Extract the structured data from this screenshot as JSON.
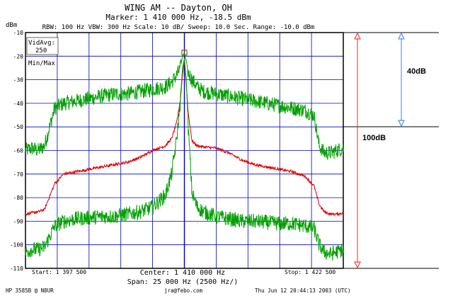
{
  "header": {
    "title": "WING AM -- Dayton, OH",
    "marker": "Marker: 1 410 000 Hz, -18.5 dBm",
    "settings": "RBW: 100 Hz  VBW: 300 Hz  Scale: 10 dB/  Sweep: 10.0 Sec.  Range: -10.0 dBm"
  },
  "footer": {
    "start": "Start: 1 397 500",
    "stop": "Stop: 1 422 500",
    "center": "Center: 1 410 000 Hz",
    "span": "Span: 25 000 Hz (2500 Hz/)",
    "instrument": "HP 3585B @ N8UR",
    "email": "jra@febo.com",
    "timestamp": "Thu Jun 12 20:44:13 2003 (UTC)"
  },
  "legend": {
    "vidavg": "VidAvg:",
    "vidavg_value": "250",
    "minmax": "Min/Max"
  },
  "colors": {
    "max_trace": "#00a000",
    "avg_trace": "#e00000",
    "min_trace": "#00a000",
    "grid": "#0000c0",
    "marker": "#806000",
    "dim40": "#3080ff",
    "dim100": "#ff2020"
  },
  "chart_data": {
    "type": "line",
    "title": "WING AM -- Dayton, OH",
    "ylabel": "dBm",
    "ylim": [
      -110,
      -10
    ],
    "xlim": [
      1397500,
      1422500
    ],
    "grid": true,
    "y_ticks": [
      "-10",
      "-20",
      "-30",
      "-40",
      "-50",
      "-60",
      "-70",
      "-80",
      "-90",
      "-100",
      "-110"
    ],
    "series": [
      {
        "name": "Max",
        "color": "#00a000",
        "x": [
          1397500,
          1398000,
          1398500,
          1399000,
          1399800,
          1400500,
          1401500,
          1402500,
          1403500,
          1404500,
          1405500,
          1406500,
          1407500,
          1408500,
          1409000,
          1409400,
          1409700,
          1409850,
          1410000,
          1410150,
          1410300,
          1410600,
          1411000,
          1411500,
          1412500,
          1413500,
          1414500,
          1415500,
          1416500,
          1417500,
          1418500,
          1419500,
          1420200,
          1420600,
          1421000,
          1421500,
          1422000,
          1422500
        ],
        "y": [
          -60,
          -59,
          -60,
          -58,
          -42,
          -40,
          -39,
          -38,
          -37,
          -36,
          -36,
          -35,
          -34,
          -33,
          -31,
          -28,
          -25,
          -20,
          -18.5,
          -22,
          -27,
          -30,
          -33,
          -35,
          -36,
          -37,
          -38,
          -39,
          -40,
          -41,
          -42,
          -43,
          -45,
          -58,
          -61,
          -61,
          -60,
          -59
        ]
      },
      {
        "name": "Average",
        "color": "#e00000",
        "x": [
          1397500,
          1398000,
          1398500,
          1399000,
          1399800,
          1400500,
          1401500,
          1402500,
          1403500,
          1404500,
          1405500,
          1406500,
          1407500,
          1408500,
          1409000,
          1409400,
          1409700,
          1409850,
          1410000,
          1410150,
          1410300,
          1410600,
          1411000,
          1411500,
          1412500,
          1413500,
          1414500,
          1415500,
          1416500,
          1417500,
          1418500,
          1419500,
          1420200,
          1420600,
          1421000,
          1421500,
          1422000,
          1422500
        ],
        "y": [
          -87,
          -86.5,
          -86,
          -85,
          -74,
          -70,
          -69,
          -68,
          -67,
          -66,
          -65,
          -63,
          -60,
          -58,
          -55,
          -48,
          -38,
          -28,
          -22,
          -32,
          -44,
          -56,
          -58,
          -58.5,
          -59,
          -61,
          -64,
          -66,
          -67,
          -68,
          -69,
          -71,
          -75,
          -83,
          -86,
          -87,
          -87,
          -86.5
        ]
      },
      {
        "name": "Min",
        "color": "#00a000",
        "x": [
          1397500,
          1398000,
          1398500,
          1399000,
          1399800,
          1400500,
          1401500,
          1402500,
          1403500,
          1404500,
          1405500,
          1406500,
          1407500,
          1408500,
          1409000,
          1409400,
          1409700,
          1409850,
          1410000,
          1410150,
          1410300,
          1410600,
          1411000,
          1411500,
          1412500,
          1413500,
          1414500,
          1415500,
          1416500,
          1417500,
          1418500,
          1419500,
          1420200,
          1420600,
          1421000,
          1421500,
          1422000,
          1422500
        ],
        "y": [
          -103,
          -102,
          -102,
          -101,
          -92,
          -90,
          -89,
          -88.5,
          -88,
          -88,
          -87,
          -86,
          -84,
          -79,
          -70,
          -55,
          -38,
          -25,
          -21,
          -30,
          -50,
          -78,
          -84,
          -86,
          -88,
          -89,
          -90,
          -90,
          -90.5,
          -91,
          -91,
          -92,
          -93,
          -100,
          -103,
          -104,
          -103,
          -102
        ]
      }
    ],
    "marker": {
      "x": 1410000,
      "y": -18.5
    },
    "annotations": [
      "40dB",
      "100dB"
    ]
  }
}
